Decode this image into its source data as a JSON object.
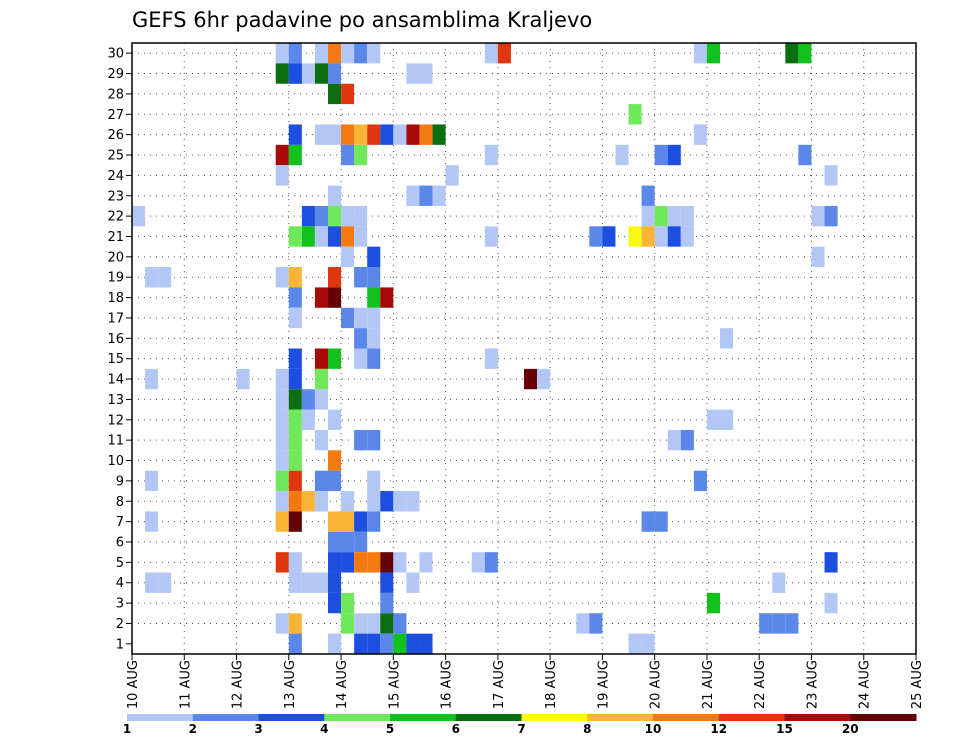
{
  "chart_data": {
    "type": "heatmap",
    "title": "GEFS 6hr padavine po ansamblima Kraljevo",
    "x_tick_labels": [
      "10 AUG",
      "11 AUG",
      "12 AUG",
      "13 AUG",
      "14 AUG",
      "15 AUG",
      "16 AUG",
      "17 AUG",
      "18 AUG",
      "19 AUG",
      "20 AUG",
      "21 AUG",
      "22 AUG",
      "23 AUG",
      "24 AUG",
      "25 AUG"
    ],
    "y_tick_labels": [
      "1",
      "2",
      "3",
      "4",
      "5",
      "6",
      "7",
      "8",
      "9",
      "10",
      "11",
      "12",
      "13",
      "14",
      "15",
      "16",
      "17",
      "18",
      "19",
      "20",
      "21",
      "22",
      "23",
      "24",
      "25",
      "26",
      "27",
      "28",
      "29",
      "30"
    ],
    "xlim": [
      0,
      60
    ],
    "ylim": [
      0,
      30
    ],
    "grid": true,
    "colorbar": {
      "labels": [
        "1",
        "2",
        "3",
        "4",
        "5",
        "6",
        "7",
        "8",
        "10",
        "12",
        "15",
        "20"
      ],
      "colors": [
        "#b3c7f7",
        "#5b86ea",
        "#1c4ee0",
        "#6fe85b",
        "#12c21c",
        "#0b6e10",
        "#fafa10",
        "#fab537",
        "#f47a10",
        "#e0360e",
        "#a8090a",
        "#640306"
      ]
    },
    "cells": [
      [
        11,
        29,
        1
      ],
      [
        12,
        29,
        2
      ],
      [
        12,
        28,
        2
      ],
      [
        13,
        28,
        1
      ],
      [
        14,
        29,
        1
      ],
      [
        14,
        28,
        6
      ],
      [
        15,
        29,
        9
      ],
      [
        16,
        29,
        1
      ],
      [
        17,
        29,
        2
      ],
      [
        18,
        29,
        1
      ],
      [
        21,
        28,
        1
      ],
      [
        22,
        28,
        1
      ],
      [
        27,
        29,
        1
      ],
      [
        28,
        29,
        10
      ],
      [
        43,
        29,
        1
      ],
      [
        44,
        29,
        5
      ],
      [
        50,
        29,
        6
      ],
      [
        51,
        29,
        5
      ],
      [
        11,
        28,
        6
      ],
      [
        12,
        28,
        3
      ],
      [
        15,
        28,
        2
      ],
      [
        15,
        27,
        6
      ],
      [
        16,
        27,
        10
      ],
      [
        38,
        26,
        4
      ],
      [
        12,
        25,
        3
      ],
      [
        14,
        25,
        1
      ],
      [
        15,
        25,
        1
      ],
      [
        16,
        25,
        9
      ],
      [
        17,
        25,
        8
      ],
      [
        18,
        25,
        10
      ],
      [
        19,
        25,
        3
      ],
      [
        20,
        25,
        1
      ],
      [
        21,
        25,
        11
      ],
      [
        43,
        25,
        1
      ],
      [
        22,
        25,
        9
      ],
      [
        23,
        25,
        6
      ],
      [
        11,
        24,
        11
      ],
      [
        12,
        24,
        5
      ],
      [
        16,
        24,
        2
      ],
      [
        17,
        24,
        4
      ],
      [
        27,
        24,
        1
      ],
      [
        37,
        24,
        1
      ],
      [
        40,
        24,
        2
      ],
      [
        41,
        24,
        3
      ],
      [
        51,
        24,
        2
      ],
      [
        11,
        23,
        1
      ],
      [
        24,
        23,
        1
      ],
      [
        53,
        23,
        1
      ],
      [
        15,
        22,
        1
      ],
      [
        21,
        22,
        1
      ],
      [
        22,
        22,
        2
      ],
      [
        23,
        22,
        1
      ],
      [
        39,
        22,
        2
      ],
      [
        0,
        21,
        1
      ],
      [
        13,
        21,
        3
      ],
      [
        14,
        21,
        2
      ],
      [
        15,
        21,
        4
      ],
      [
        16,
        21,
        1
      ],
      [
        17,
        21,
        1
      ],
      [
        39,
        21,
        1
      ],
      [
        40,
        21,
        4
      ],
      [
        41,
        21,
        1
      ],
      [
        42,
        21,
        1
      ],
      [
        52,
        21,
        1
      ],
      [
        53,
        21,
        2
      ],
      [
        12,
        20,
        4
      ],
      [
        13,
        20,
        5
      ],
      [
        14,
        20,
        1
      ],
      [
        15,
        20,
        3
      ],
      [
        16,
        20,
        9
      ],
      [
        17,
        20,
        1
      ],
      [
        27,
        20,
        1
      ],
      [
        35,
        20,
        2
      ],
      [
        36,
        20,
        3
      ],
      [
        38,
        20,
        7
      ],
      [
        39,
        20,
        8
      ],
      [
        40,
        20,
        1
      ],
      [
        41,
        20,
        3
      ],
      [
        42,
        20,
        1
      ],
      [
        16,
        19,
        1
      ],
      [
        18,
        19,
        3
      ],
      [
        52,
        19,
        1
      ],
      [
        1,
        18,
        1
      ],
      [
        2,
        18,
        1
      ],
      [
        11,
        18,
        1
      ],
      [
        12,
        18,
        8
      ],
      [
        15,
        18,
        10
      ],
      [
        17,
        18,
        2
      ],
      [
        18,
        18,
        2
      ],
      [
        12,
        17,
        2
      ],
      [
        14,
        17,
        11
      ],
      [
        15,
        17,
        12
      ],
      [
        18,
        17,
        5
      ],
      [
        19,
        17,
        11
      ],
      [
        12,
        16,
        1
      ],
      [
        16,
        16,
        2
      ],
      [
        17,
        16,
        1
      ],
      [
        18,
        16,
        1
      ],
      [
        17,
        15,
        2
      ],
      [
        18,
        15,
        1
      ],
      [
        45,
        15,
        1
      ],
      [
        12,
        14,
        3
      ],
      [
        14,
        14,
        11
      ],
      [
        15,
        14,
        5
      ],
      [
        17,
        14,
        1
      ],
      [
        18,
        14,
        2
      ],
      [
        27,
        14,
        1
      ],
      [
        1,
        13,
        1
      ],
      [
        8,
        13,
        1
      ],
      [
        11,
        13,
        1
      ],
      [
        12,
        13,
        3
      ],
      [
        14,
        13,
        4
      ],
      [
        30,
        13,
        12
      ],
      [
        31,
        13,
        1
      ],
      [
        11,
        12,
        1
      ],
      [
        12,
        12,
        6
      ],
      [
        13,
        12,
        2
      ],
      [
        14,
        12,
        1
      ],
      [
        11,
        11,
        1
      ],
      [
        12,
        11,
        4
      ],
      [
        13,
        11,
        1
      ],
      [
        15,
        11,
        1
      ],
      [
        44,
        11,
        1
      ],
      [
        45,
        11,
        1
      ],
      [
        11,
        10,
        1
      ],
      [
        12,
        10,
        4
      ],
      [
        14,
        10,
        1
      ],
      [
        17,
        10,
        2
      ],
      [
        18,
        10,
        2
      ],
      [
        41,
        10,
        1
      ],
      [
        42,
        10,
        2
      ],
      [
        11,
        9,
        1
      ],
      [
        12,
        9,
        4
      ],
      [
        15,
        9,
        9
      ],
      [
        1,
        8,
        1
      ],
      [
        11,
        8,
        4
      ],
      [
        12,
        8,
        10
      ],
      [
        14,
        8,
        2
      ],
      [
        15,
        8,
        2
      ],
      [
        18,
        8,
        1
      ],
      [
        43,
        8,
        2
      ],
      [
        11,
        7,
        1
      ],
      [
        12,
        7,
        9
      ],
      [
        13,
        7,
        8
      ],
      [
        14,
        7,
        1
      ],
      [
        16,
        7,
        1
      ],
      [
        18,
        7,
        1
      ],
      [
        19,
        7,
        3
      ],
      [
        20,
        7,
        1
      ],
      [
        21,
        7,
        1
      ],
      [
        1,
        6,
        1
      ],
      [
        11,
        6,
        8
      ],
      [
        12,
        6,
        12
      ],
      [
        15,
        6,
        8
      ],
      [
        16,
        6,
        8
      ],
      [
        17,
        6,
        3
      ],
      [
        18,
        6,
        2
      ],
      [
        39,
        6,
        2
      ],
      [
        40,
        6,
        2
      ],
      [
        15,
        5,
        2
      ],
      [
        16,
        5,
        2
      ],
      [
        17,
        5,
        2
      ],
      [
        11,
        4,
        10
      ],
      [
        12,
        4,
        1
      ],
      [
        15,
        4,
        3
      ],
      [
        16,
        4,
        3
      ],
      [
        17,
        4,
        9
      ],
      [
        18,
        4,
        9
      ],
      [
        19,
        4,
        12
      ],
      [
        20,
        4,
        1
      ],
      [
        22,
        4,
        1
      ],
      [
        26,
        4,
        1
      ],
      [
        27,
        4,
        2
      ],
      [
        53,
        4,
        3
      ],
      [
        1,
        3,
        1
      ],
      [
        2,
        3,
        1
      ],
      [
        12,
        3,
        1
      ],
      [
        13,
        3,
        1
      ],
      [
        14,
        3,
        1
      ],
      [
        15,
        3,
        3
      ],
      [
        19,
        3,
        3
      ],
      [
        21,
        3,
        1
      ],
      [
        49,
        3,
        1
      ],
      [
        15,
        2,
        3
      ],
      [
        16,
        2,
        4
      ],
      [
        19,
        2,
        2
      ],
      [
        44,
        2,
        5
      ],
      [
        53,
        2,
        1
      ],
      [
        11,
        1,
        1
      ],
      [
        12,
        1,
        8
      ],
      [
        16,
        1,
        4
      ],
      [
        17,
        1,
        1
      ],
      [
        18,
        1,
        1
      ],
      [
        19,
        1,
        6
      ],
      [
        20,
        1,
        2
      ],
      [
        34,
        1,
        1
      ],
      [
        35,
        1,
        2
      ],
      [
        48,
        1,
        2
      ],
      [
        49,
        1,
        2
      ],
      [
        50,
        1,
        2
      ],
      [
        12,
        0,
        2
      ],
      [
        15,
        0,
        1
      ],
      [
        17,
        0,
        3
      ],
      [
        18,
        0,
        3
      ],
      [
        19,
        0,
        2
      ],
      [
        20,
        0,
        5
      ],
      [
        21,
        0,
        3
      ],
      [
        22,
        0,
        3
      ],
      [
        38,
        0,
        1
      ],
      [
        39,
        0,
        1
      ],
      [
        14,
        -1,
        12
      ],
      [
        15,
        -1,
        7
      ],
      [
        19,
        -1,
        5
      ],
      [
        27,
        -1,
        1
      ],
      [
        29,
        -1,
        1
      ],
      [
        30,
        -1,
        3
      ]
    ]
  }
}
